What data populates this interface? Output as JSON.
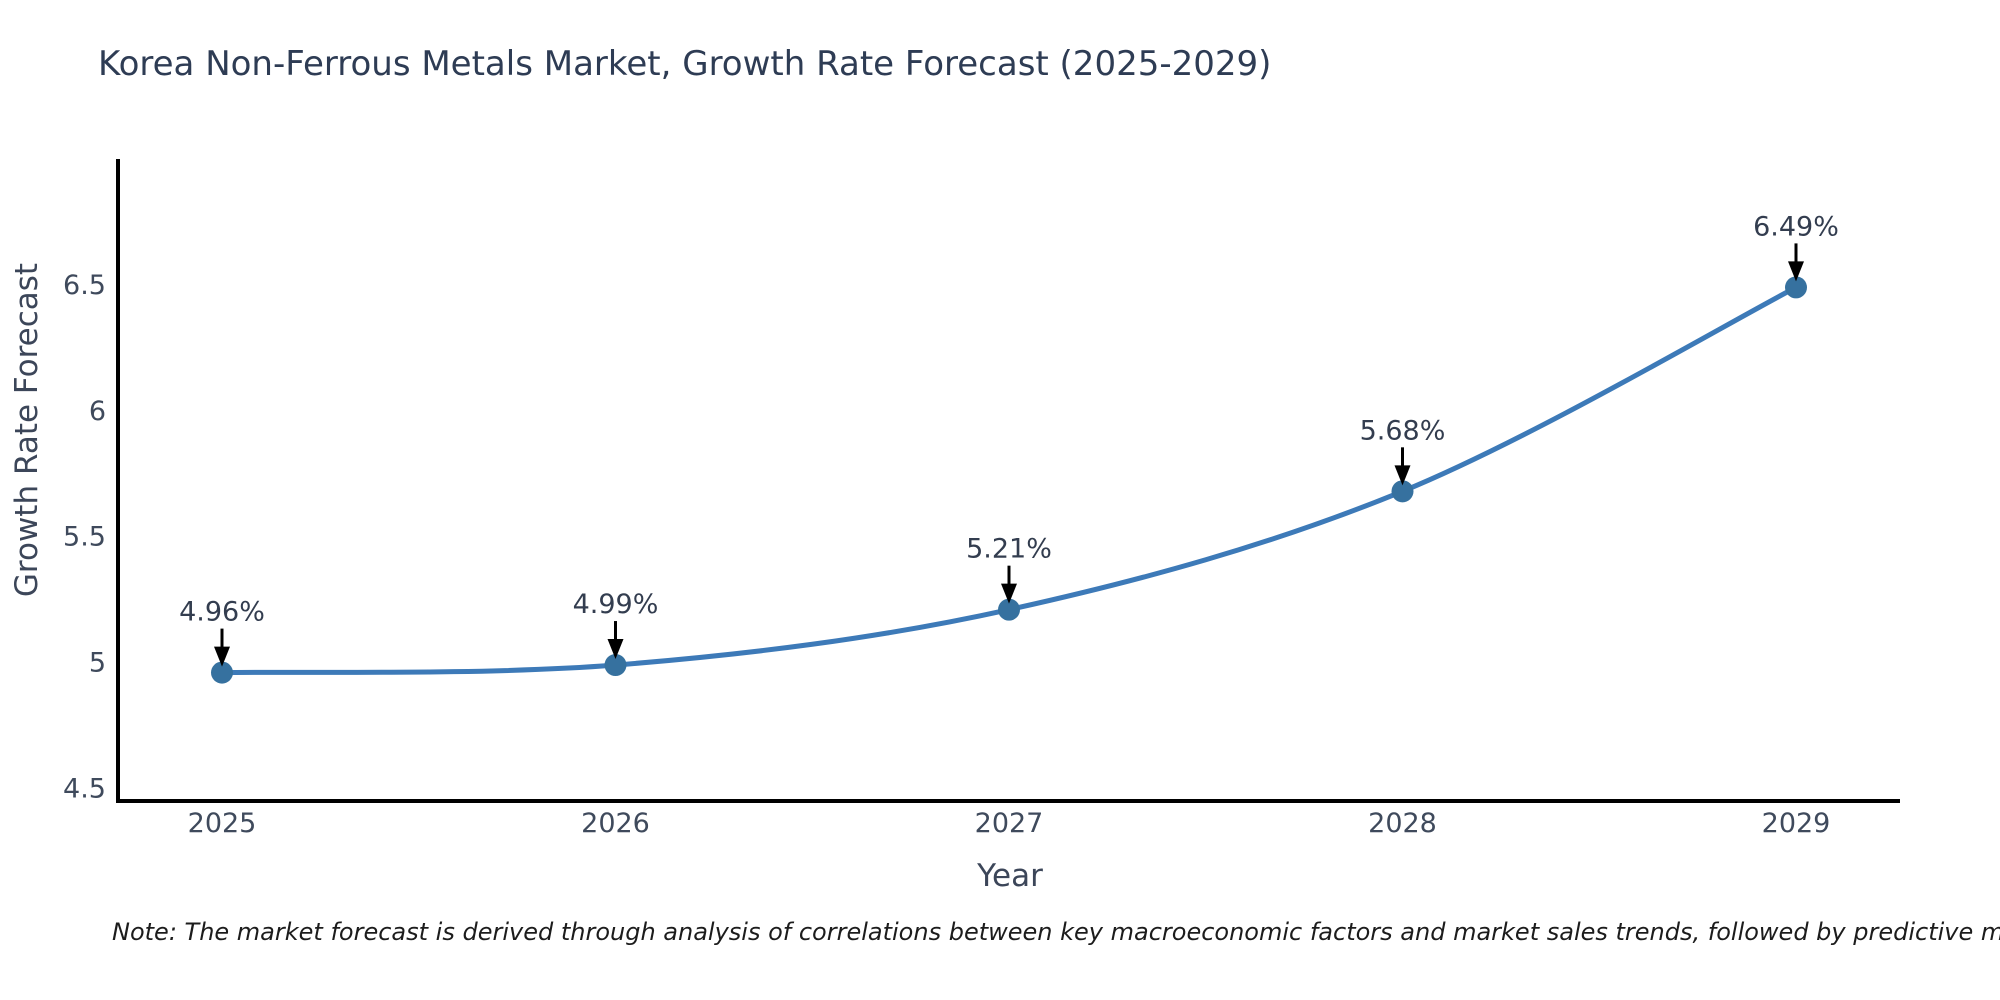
{
  "title": "Korea Non-Ferrous Metals Market, Growth Rate Forecast (2025-2029)",
  "note": "Note: The market forecast is derived through analysis of correlations between key macroeconomic factors and market sales trends, followed by predictive modeling to project future sales",
  "chart_data": {
    "type": "line",
    "title": "Korea Non-Ferrous Metals Market, Growth Rate Forecast (2025-2029)",
    "xlabel": "Year",
    "ylabel": "Growth Rate Forecast",
    "categories": [
      "2025",
      "2026",
      "2027",
      "2028",
      "2029"
    ],
    "values": [
      4.96,
      4.99,
      5.21,
      5.68,
      6.49
    ],
    "point_labels": [
      "4.96%",
      "4.99%",
      "5.21%",
      "5.68%",
      "6.49%"
    ],
    "ytick_values": [
      4.5,
      5,
      5.5,
      6,
      6.5
    ],
    "ytick_labels": [
      "4.5",
      "5",
      "5.5",
      "6",
      "6.5"
    ],
    "ylim": [
      4.45,
      7.0
    ],
    "grid": false,
    "legend_position": "none",
    "annotations": "arrow-down-to-point",
    "colors": {
      "line": "#3d7ab8",
      "marker": "#36719f",
      "axis": "#000000",
      "tick_text": "#3f4a5c",
      "title_text": "#2e3c54",
      "arrow": "#000000",
      "background": "#ffffff"
    }
  }
}
